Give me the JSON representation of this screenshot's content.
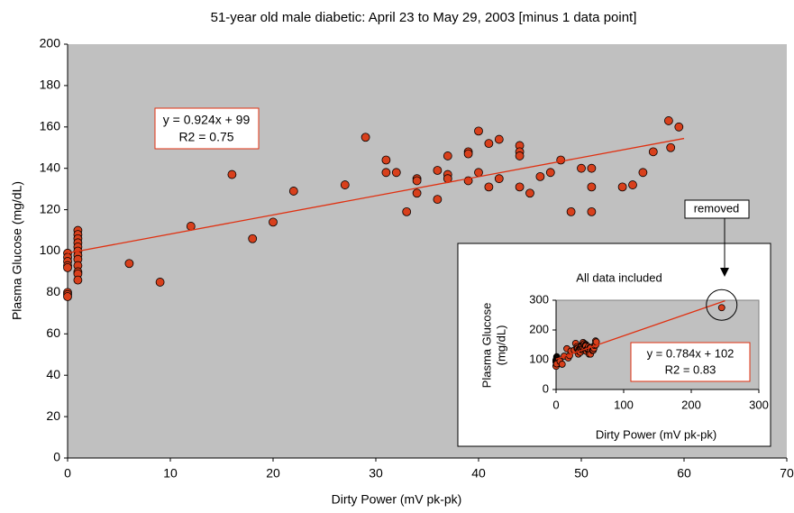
{
  "chart_data": [
    {
      "type": "scatter",
      "title": "51-year old male diabetic:  April 23 to May 29, 2003 [minus 1 data point]",
      "xlabel": "Dirty Power (mV pk-pk)",
      "ylabel": "Plasma Glucose (mg/dL)",
      "xlim": [
        0,
        70
      ],
      "ylim": [
        0,
        200
      ],
      "xticks": [
        0,
        10,
        20,
        30,
        40,
        50,
        60,
        70
      ],
      "yticks": [
        0,
        20,
        40,
        60,
        80,
        100,
        120,
        140,
        160,
        180,
        200
      ],
      "color": "#d8401c",
      "background": "#c0c0c0",
      "x": [
        0,
        0,
        0,
        0,
        0,
        0,
        0,
        0,
        1,
        1,
        1,
        1,
        1,
        1,
        1,
        1,
        1,
        1,
        1,
        1,
        6,
        9,
        12,
        16,
        18,
        20,
        22,
        27,
        29,
        31,
        31,
        32,
        33,
        34,
        34,
        34,
        36,
        36,
        37,
        37,
        37,
        39,
        39,
        39,
        40,
        40,
        41,
        41,
        42,
        42,
        44,
        44,
        44,
        44,
        45,
        46,
        47,
        48,
        49,
        50,
        51,
        51,
        51,
        54,
        55,
        56,
        57,
        58.5,
        58.7,
        59.5
      ],
      "y": [
        99,
        97,
        95,
        93,
        92,
        80,
        79,
        78,
        110,
        108,
        106,
        104,
        102,
        100,
        98,
        96,
        93,
        90,
        89,
        86,
        94,
        85,
        112,
        137,
        106,
        114,
        129,
        132,
        155,
        144,
        138,
        138,
        119,
        135,
        134,
        128,
        139,
        125,
        146,
        137,
        135,
        148,
        147,
        134,
        158,
        138,
        152,
        131,
        154,
        135,
        151,
        148,
        146,
        131,
        128,
        136,
        138,
        144,
        119,
        140,
        140,
        131,
        119,
        131,
        132,
        138,
        148,
        163,
        150,
        160
      ],
      "trendline": {
        "label": "y = 0.924x + 99",
        "r2_label": "R2 = 0.75",
        "slope": 0.924,
        "intercept": 99,
        "x": [
          0,
          60
        ],
        "color": "#e03010"
      }
    },
    {
      "type": "scatter-inset",
      "title": "All data included",
      "xlabel": "Dirty Power (mV pk-pk)",
      "ylabel": [
        "Plasma Glucose",
        "(mg/dL)"
      ],
      "xlim": [
        0,
        300
      ],
      "ylim": [
        0,
        300
      ],
      "xticks": [
        0,
        100,
        200,
        300
      ],
      "yticks": [
        0,
        100,
        200,
        300
      ],
      "x": [
        245
      ],
      "y": [
        275
      ],
      "annotation": "removed",
      "trendline": {
        "label": "y = 0.784x + 102",
        "r2_label": "R2 = 0.83",
        "slope": 0.784,
        "intercept": 102,
        "x": [
          0,
          250
        ]
      }
    }
  ]
}
